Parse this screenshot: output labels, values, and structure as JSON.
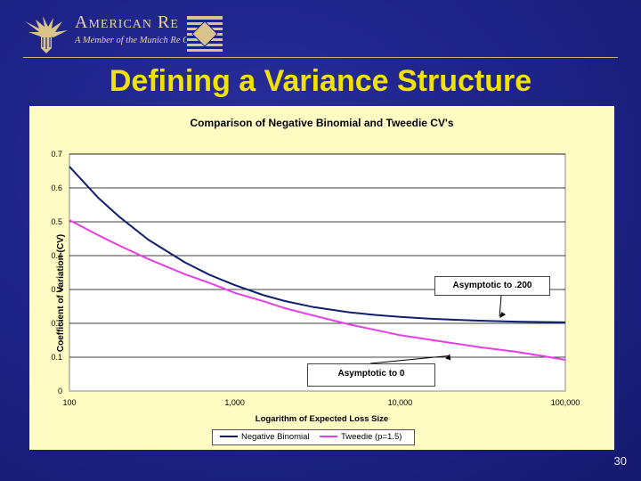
{
  "header": {
    "brand_name": "American Re",
    "brand_sub": "A Member of the Munich Re Group"
  },
  "slide": {
    "title": "Defining a Variance Structure",
    "page_number": "30"
  },
  "chart_data": {
    "type": "line",
    "title": "Comparison of Negative Binomial and Tweedie CV's",
    "xlabel": "Logarithm of Expected Loss Size",
    "ylabel": "Coefficient of Variation (CV)",
    "x_scale": "log",
    "xlim": [
      100,
      100000
    ],
    "ylim": [
      0,
      0.7
    ],
    "x_ticks": [
      "100",
      "1,000",
      "10,000",
      "100,000"
    ],
    "y_ticks": [
      "0",
      "0.1",
      "0.2",
      "0.3",
      "0.4",
      "0.5",
      "0.6",
      "0.7"
    ],
    "gridlines": "horizontal",
    "legend_position": "bottom",
    "x": [
      100,
      150,
      200,
      300,
      500,
      700,
      1000,
      1500,
      2000,
      3000,
      5000,
      7000,
      10000,
      15000,
      20000,
      30000,
      50000,
      70000,
      100000
    ],
    "series": [
      {
        "name": "Negative Binomial",
        "color": "#0f1f6e",
        "values": [
          0.663,
          0.57,
          0.515,
          0.447,
          0.38,
          0.344,
          0.313,
          0.283,
          0.266,
          0.248,
          0.232,
          0.225,
          0.219,
          0.214,
          0.211,
          0.208,
          0.205,
          0.204,
          0.203
        ]
      },
      {
        "name": "Tweedie (p=1.5)",
        "color": "#e63ee6",
        "values": [
          0.505,
          0.46,
          0.43,
          0.39,
          0.345,
          0.32,
          0.29,
          0.265,
          0.245,
          0.223,
          0.196,
          0.181,
          0.165,
          0.152,
          0.143,
          0.13,
          0.116,
          0.105,
          0.092
        ]
      }
    ],
    "annotations": [
      {
        "text": "Asymptotic to .200",
        "points_to": {
          "x": 40000,
          "y": 0.205
        }
      },
      {
        "text": "Asymptotic to 0",
        "points_to": {
          "x": 20000,
          "y": 0.12
        }
      }
    ]
  }
}
